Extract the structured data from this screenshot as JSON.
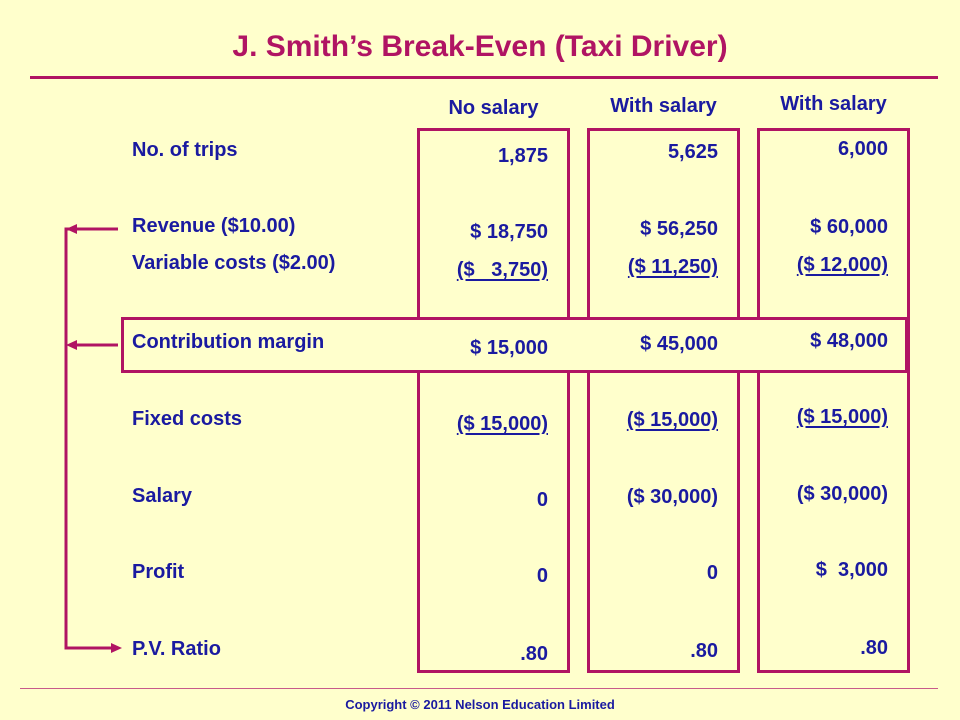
{
  "title": "J. Smith’s Break-Even (Taxi Driver)",
  "columns": [
    "No salary",
    "With salary",
    "With salary"
  ],
  "rows": {
    "trips": {
      "label": "No. of trips",
      "values": [
        "1,875",
        "5,625",
        "6,000"
      ]
    },
    "revenue": {
      "label": "Revenue ($10.00)",
      "values": [
        "$ 18,750",
        "$ 56,250",
        "$ 60,000"
      ]
    },
    "variable": {
      "label": "Variable costs ($2.00)",
      "values": [
        "($   3,750)",
        "($ 11,250)",
        "($ 12,000)"
      ]
    },
    "cm": {
      "label": "Contribution margin",
      "values": [
        "$ 15,000",
        "$ 45,000",
        "$ 48,000"
      ]
    },
    "fixed": {
      "label": "Fixed costs",
      "values": [
        "($ 15,000)",
        "($ 15,000)",
        "($ 15,000)"
      ]
    },
    "salary": {
      "label": "Salary",
      "values": [
        "0",
        "($ 30,000)",
        "($ 30,000)"
      ]
    },
    "profit": {
      "label": "Profit",
      "values": [
        "0",
        "0",
        "$  3,000"
      ]
    },
    "pv": {
      "label": "P.V. Ratio",
      "values": [
        ".80",
        ".80",
        ".80"
      ]
    }
  },
  "copyright": "Copyright © 2011 Nelson Education Limited",
  "colors": {
    "accent": "#b01463",
    "text": "#1a1aa0",
    "background": "#ffffcc"
  }
}
